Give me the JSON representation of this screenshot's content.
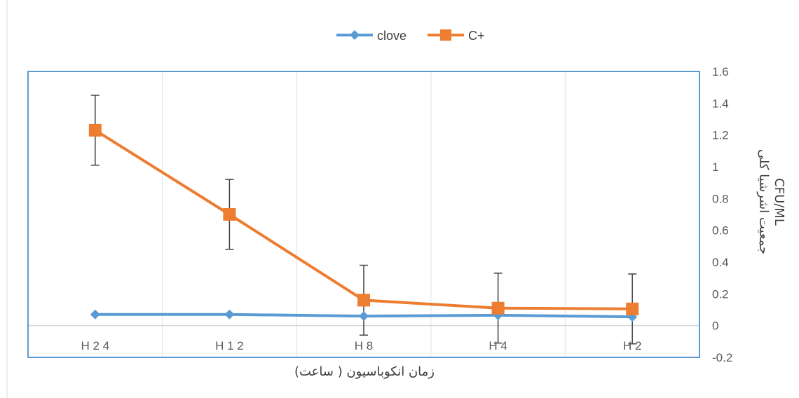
{
  "chart_data": {
    "type": "line",
    "categories": [
      "H 2 4",
      "H 1 2",
      "H 8",
      "H 4",
      "H 2"
    ],
    "series": [
      {
        "name": "clove",
        "values": [
          0.07,
          0.07,
          0.06,
          0.065,
          0.055
        ],
        "errors": null,
        "color": "#5B9BD5",
        "marker": "diamond"
      },
      {
        "name": "C+",
        "values": [
          1.23,
          0.7,
          0.16,
          0.11,
          0.105
        ],
        "errors": [
          0.22,
          0.22,
          0.22,
          0.22,
          0.22
        ],
        "color": "#ED7D31",
        "marker": "square"
      }
    ],
    "xlabel": "زمان انکوباسیون ( ساعت)",
    "ylabel_line1": "جمعیت اشرشیا کلی",
    "ylabel_line2": "CFU/ML",
    "ylim": [
      -0.2,
      1.6
    ],
    "yticks": [
      1.6,
      1.4,
      1.2,
      1,
      0.8,
      0.6,
      0.4,
      0.2,
      0,
      -0.2
    ],
    "y_axis_position": "right",
    "grid": "vertical",
    "legend_position": "top"
  }
}
